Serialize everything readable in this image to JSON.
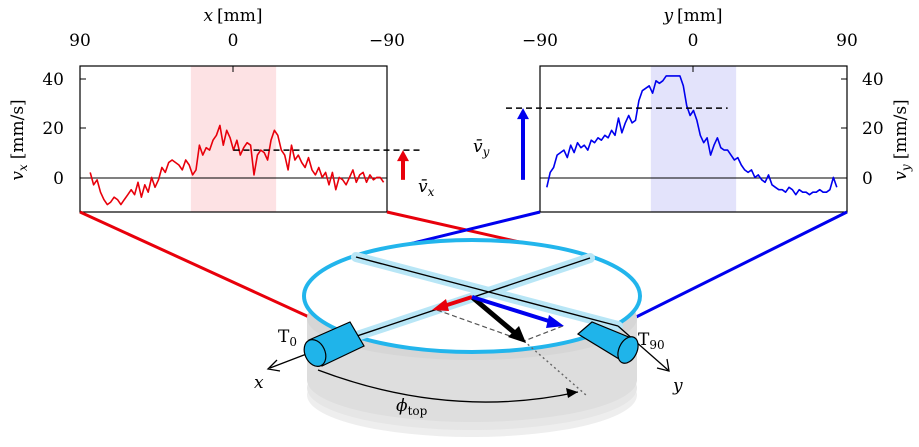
{
  "left_plot": {
    "top_axis_label_var": "x",
    "top_axis_label_unit": "[mm]",
    "top_ticks": [
      "90",
      "0",
      "−90"
    ],
    "y_axis_label_var": "v",
    "y_axis_label_sub": "x",
    "y_axis_label_unit": "[mm/s]",
    "y_ticks": [
      "40",
      "20",
      "0"
    ],
    "mean_label_var": "v̄",
    "mean_label_sub": "x",
    "color": "#e8000b",
    "band_color": "#fde2e4"
  },
  "right_plot": {
    "top_axis_label_var": "y",
    "top_axis_label_unit": "[mm]",
    "top_ticks": [
      "−90",
      "0",
      "90"
    ],
    "y_axis_label_var": "v",
    "y_axis_label_sub": "y",
    "y_axis_label_unit": "[mm/s]",
    "y_ticks": [
      "40",
      "20",
      "0"
    ],
    "mean_label_var": "v̄",
    "mean_label_sub": "y",
    "color": "#0000ee",
    "band_color": "#e3e3fb"
  },
  "diagram": {
    "t0_main": "T",
    "t0_sub": "0",
    "t90_main": "T",
    "t90_sub": "90",
    "x_axis_label": "x",
    "y_axis_label": "y",
    "phi_main": "ϕ",
    "phi_sub": "top",
    "ring_color": "#22b5ec",
    "arm_highlight_color": "#b8e6f6",
    "tube_color": "#1fb4ea"
  },
  "chart_data": [
    {
      "type": "line",
      "name": "",
      "x_axis": "x [mm]",
      "xlim": [
        90,
        -90
      ],
      "ylim": [
        -13,
        46
      ],
      "x": [
        84,
        82,
        80,
        78,
        76,
        74,
        72,
        70,
        68,
        66,
        64,
        62,
        60,
        58,
        56,
        54,
        52,
        50,
        48,
        46,
        44,
        42,
        40,
        38,
        36,
        34,
        32,
        30,
        28,
        26,
        24,
        22,
        20,
        18,
        16,
        14,
        12,
        10,
        8,
        6,
        4,
        2,
        0,
        -2,
        -4,
        -6,
        -8,
        -10,
        -12,
        -14,
        -16,
        -18,
        -20,
        -22,
        -24,
        -26,
        -28,
        -30,
        -32,
        -34,
        -36,
        -38,
        -40,
        -42,
        -44,
        -46,
        -48,
        -50,
        -52,
        -54,
        -56,
        -58,
        -60,
        -62,
        -64,
        -66,
        -68,
        -70,
        -72,
        -74,
        -76,
        -78,
        -80,
        -82,
        -84,
        -86,
        -88
      ],
      "y": [
        3,
        -2,
        0,
        -5,
        -8,
        -10,
        -9,
        -7,
        -8,
        -10,
        -8,
        -6,
        -4,
        -6,
        -1,
        -7,
        -2,
        -5,
        1,
        -3,
        0,
        5,
        3,
        7,
        8,
        7,
        6,
        4,
        8,
        6,
        2,
        4,
        14,
        10,
        13,
        12,
        16,
        18,
        22,
        14,
        20,
        17,
        12,
        16,
        10,
        13,
        15,
        14,
        2,
        10,
        12,
        11,
        8,
        16,
        20,
        18,
        12,
        10,
        4,
        14,
        8,
        10,
        7,
        5,
        9,
        4,
        2,
        5,
        1,
        3,
        -2,
        3,
        -4,
        1,
        0,
        -2,
        1,
        4,
        -1,
        2,
        3,
        -1,
        2,
        0,
        1,
        1,
        -1
      ],
      "mean": 12,
      "band_x": [
        25,
        -25
      ]
    },
    {
      "type": "line",
      "name": "",
      "x_axis": "y [mm]",
      "xlim": [
        -90,
        90
      ],
      "ylim": [
        -13,
        46
      ],
      "x": [
        -86,
        -84,
        -82,
        -80,
        -78,
        -76,
        -74,
        -72,
        -70,
        -68,
        -66,
        -64,
        -62,
        -60,
        -58,
        -56,
        -54,
        -52,
        -50,
        -48,
        -46,
        -44,
        -42,
        -40,
        -38,
        -36,
        -34,
        -32,
        -30,
        -28,
        -26,
        -24,
        -22,
        -20,
        -18,
        -16,
        -14,
        -12,
        -10,
        -8,
        -6,
        -4,
        -2,
        0,
        2,
        4,
        6,
        8,
        10,
        12,
        14,
        16,
        18,
        20,
        22,
        24,
        26,
        28,
        30,
        32,
        34,
        36,
        38,
        40,
        42,
        44,
        46,
        48,
        50,
        52,
        54,
        56,
        58,
        60,
        62,
        64,
        66,
        68,
        70,
        72,
        74,
        76,
        78,
        80,
        82,
        84
      ],
      "y": [
        -3,
        3,
        5,
        10,
        11,
        12,
        9,
        14,
        11,
        15,
        13,
        14,
        12,
        16,
        15,
        17,
        16,
        18,
        17,
        20,
        18,
        25,
        19,
        23,
        26,
        23,
        24,
        32,
        36,
        37,
        38,
        35,
        40,
        39,
        40,
        42,
        42,
        42,
        42,
        42,
        38,
        30,
        26,
        28,
        24,
        18,
        15,
        17,
        10,
        14,
        17,
        13,
        12,
        12,
        10,
        8,
        9,
        6,
        4,
        3,
        4,
        1,
        2,
        0,
        -1,
        2,
        -2,
        -3,
        -4,
        -4,
        -5,
        -3,
        -4,
        -6,
        -4,
        -5,
        -5,
        -6,
        -5,
        -5,
        -4,
        -5,
        -5,
        -4,
        1,
        -3
      ],
      "mean": 29,
      "band_x": [
        -25,
        25
      ]
    }
  ]
}
